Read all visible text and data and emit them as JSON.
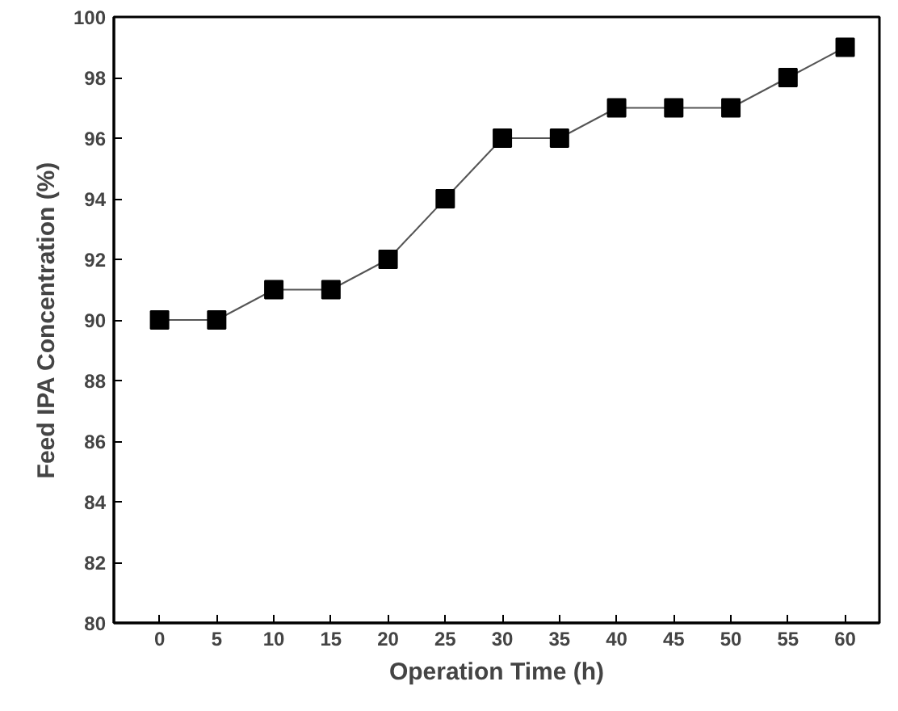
{
  "chart_data": {
    "type": "line",
    "xlabel": "Operation Time (h)",
    "ylabel": "Feed IPA Concentration (%)",
    "x": [
      0,
      5,
      10,
      15,
      20,
      25,
      30,
      35,
      40,
      45,
      50,
      55,
      60
    ],
    "series": [
      {
        "color": "#000000",
        "values": [
          90,
          90,
          91,
          91,
          92,
          94,
          96,
          96,
          97,
          97,
          97,
          98,
          99
        ]
      }
    ],
    "xlim": [
      -4,
      63
    ],
    "xticks": [
      0,
      5,
      10,
      15,
      20,
      25,
      30,
      35,
      40,
      45,
      50,
      55,
      60
    ],
    "ylim": [
      80,
      100
    ],
    "yticks": [
      80,
      82,
      84,
      86,
      88,
      90,
      92,
      94,
      96,
      98,
      100
    ],
    "grid": false,
    "marker": "square",
    "line_style": "solid"
  }
}
